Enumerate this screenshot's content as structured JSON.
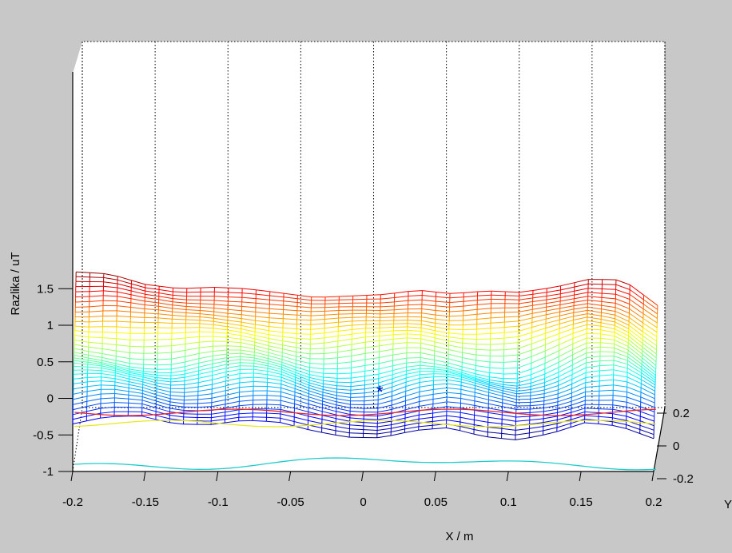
{
  "chart_data": {
    "type": "surface-mesh",
    "xlabel": "X / m",
    "ylabel": "Razlika / uT",
    "zlabel": "Y",
    "x_ticks": [
      "-0.2",
      "-0.15",
      "-0.1",
      "-0.05",
      "0",
      "0.05",
      "0.1",
      "0.15",
      "0.2"
    ],
    "z_ticks": [
      "-1",
      "-0.5",
      "0",
      "0.5",
      "1",
      "1.5"
    ],
    "y_ticks": [
      "0.2",
      "0",
      "-0.2"
    ],
    "xlim": [
      -0.2,
      0.2
    ],
    "zlim": [
      -1,
      1.85
    ],
    "ylim": [
      -0.2,
      0.2
    ],
    "grid": true,
    "colormap": "jet",
    "surface": {
      "front_edge_profile": [
        -0.35,
        -0.25,
        -0.24,
        -0.35,
        -0.36,
        -0.3,
        -0.32,
        -0.44,
        -0.53,
        -0.54,
        -0.44,
        -0.4,
        -0.52,
        -0.57,
        -0.48,
        -0.33,
        -0.38,
        -0.55
      ],
      "back_edge_profile": [
        1.73,
        1.7,
        1.56,
        1.5,
        1.52,
        1.5,
        1.44,
        1.38,
        1.4,
        1.42,
        1.48,
        1.43,
        1.47,
        1.45,
        1.52,
        1.63,
        1.62,
        1.27
      ],
      "color_levels": [
        -0.5,
        -0.25,
        0,
        0.25,
        0.5,
        0.75,
        1,
        1.25,
        1.5
      ]
    },
    "marker": {
      "x": 0.01,
      "z": 0.44,
      "symbol": "*",
      "color": "#0000aa"
    },
    "floor_contours": [
      {
        "color": "#ee2222",
        "level": 1.5
      },
      {
        "color": "#e8e820",
        "level": 1.0
      },
      {
        "color": "#22cccc",
        "level": 0.0
      }
    ]
  }
}
